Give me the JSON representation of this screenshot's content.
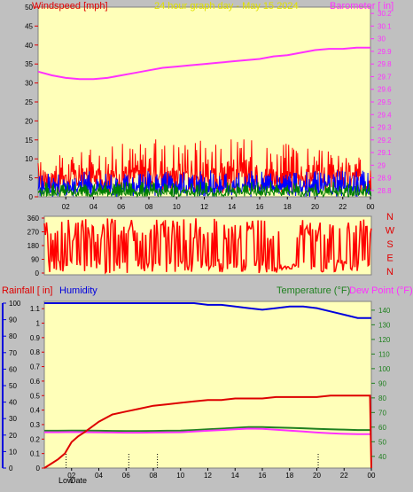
{
  "colors": {
    "background": "#c0c0c0",
    "plot": "#ffffb9",
    "wind": "#ff0000",
    "wind_avg": "#0000ff",
    "wind_low": "#007f00",
    "barometer": "#ff30ff",
    "direction": "#ff0000",
    "humidity": "#0000dd",
    "rain": "#dd0000",
    "temperature": "#208020",
    "dewpoint": "#ff30ff"
  },
  "chart_data": [
    {
      "type": "line",
      "title": "24 hour graph day - May 15 2024",
      "y_left_label": "Windspeed [mph]",
      "y_right_label": "Barometer [ in]",
      "x_ticks": [
        "02",
        "04",
        "06",
        "08",
        "10",
        "12",
        "14",
        "16",
        "18",
        "20",
        "22",
        "00"
      ],
      "ylim_left": [
        0,
        50
      ],
      "yticks_left": [
        "0",
        "5",
        "10",
        "15",
        "20",
        "25",
        "30",
        "35",
        "40",
        "45",
        "50"
      ],
      "ylim_right": [
        28.75,
        30.25
      ],
      "yticks_right": [
        "28.8",
        "28.9",
        "29",
        "29.1",
        "29.2",
        "29.3",
        "29.4",
        "29.5",
        "29.6",
        "29.7",
        "29.8",
        "29.9",
        "30",
        "30.1",
        "30.2"
      ],
      "barometer": {
        "x": [
          0,
          1,
          2,
          3,
          4,
          5,
          6,
          7,
          8,
          9,
          10,
          11,
          12,
          13,
          14,
          15,
          16,
          17,
          18,
          19,
          20,
          21,
          22,
          23,
          24
        ],
        "values": [
          29.74,
          29.71,
          29.69,
          29.68,
          29.68,
          29.69,
          29.71,
          29.73,
          29.75,
          29.77,
          29.78,
          29.79,
          29.8,
          29.81,
          29.82,
          29.83,
          29.84,
          29.86,
          29.87,
          29.89,
          29.91,
          29.92,
          29.92,
          29.93,
          29.93
        ]
      },
      "wind_bands": [
        {
          "series": "gust",
          "range": [
            0,
            18
          ]
        },
        {
          "series": "average",
          "range": [
            0,
            8
          ]
        },
        {
          "series": "low",
          "range": [
            0,
            4
          ]
        }
      ]
    },
    {
      "type": "line",
      "title": "",
      "y_left_ticks": [
        "0",
        "90",
        "180",
        "270",
        "360"
      ],
      "ylim_left": [
        0,
        360
      ],
      "y_right_ticks": [
        "N",
        "W",
        "S",
        "E",
        "N"
      ],
      "series": [
        {
          "name": "Wind Direction",
          "range": [
            0,
            360
          ]
        }
      ]
    },
    {
      "type": "line",
      "title": "",
      "y_left_label_rain": "Rainfall [ in]",
      "y_left_label_humidity": "Humidity",
      "y_right_label_temperature": "Temperature (°F)",
      "y_right_label_dewpoint": "Dew Point (°F)",
      "humidity_ticks": [
        "0",
        "10",
        "20",
        "30",
        "40",
        "50",
        "60",
        "70",
        "80",
        "90",
        "100"
      ],
      "ylim_humidity": [
        0,
        100
      ],
      "rain_ticks": [
        "0",
        "0.1",
        "0.2",
        "0.3",
        "0.4",
        "0.5",
        "0.6",
        "0.7",
        "0.8",
        "0.9",
        "1",
        "1.1"
      ],
      "ylim_rain": [
        0,
        1.15
      ],
      "temp_ticks": [
        "40",
        "50",
        "60",
        "70",
        "80",
        "90",
        "100",
        "110",
        "120",
        "130",
        "140"
      ],
      "ylim_temp": [
        32,
        146
      ],
      "x_ticks": [
        "02",
        "04",
        "06",
        "08",
        "10",
        "12",
        "14",
        "16",
        "18",
        "20",
        "22",
        "00"
      ],
      "bottom_labels": {
        "low": "Low",
        "date": "Date"
      },
      "humidity": {
        "x": [
          0,
          1,
          2,
          3,
          4,
          5,
          6,
          7,
          8,
          9,
          10,
          11,
          12,
          13,
          14,
          15,
          16,
          17,
          18,
          19,
          20,
          21,
          22,
          23,
          24
        ],
        "values": [
          100,
          100,
          100,
          100,
          100,
          100,
          100,
          100,
          100,
          100,
          100,
          100,
          99,
          99,
          98,
          97,
          96,
          97,
          98,
          98,
          97,
          95,
          93,
          91,
          91
        ]
      },
      "rain": {
        "x": [
          0,
          0.5,
          1,
          1.5,
          2,
          2.5,
          3,
          4,
          5,
          6,
          7,
          8,
          9,
          10,
          11,
          12,
          13,
          14,
          15,
          16,
          17,
          18,
          19,
          20,
          21,
          22,
          23,
          23.9,
          24
        ],
        "values": [
          0.0,
          0.03,
          0.06,
          0.1,
          0.18,
          0.22,
          0.25,
          0.32,
          0.37,
          0.39,
          0.41,
          0.43,
          0.44,
          0.45,
          0.46,
          0.47,
          0.47,
          0.48,
          0.48,
          0.48,
          0.49,
          0.49,
          0.49,
          0.49,
          0.5,
          0.5,
          0.5,
          0.5,
          0.0
        ]
      },
      "temperature": {
        "x": [
          0,
          1,
          2,
          3,
          4,
          5,
          6,
          7,
          8,
          9,
          10,
          11,
          12,
          13,
          14,
          15,
          16,
          17,
          18,
          19,
          20,
          21,
          22,
          23,
          24
        ],
        "values": [
          57.5,
          57.5,
          57.6,
          57.6,
          57.5,
          57.4,
          57.3,
          57.3,
          57.4,
          57.5,
          57.6,
          58,
          58.5,
          59,
          59.5,
          60,
          60,
          59.8,
          59.5,
          59.2,
          58.8,
          58.5,
          58.3,
          58,
          58
        ]
      },
      "dewpoint": {
        "x": [
          0,
          1,
          2,
          3,
          4,
          5,
          6,
          7,
          8,
          9,
          10,
          11,
          12,
          13,
          14,
          15,
          16,
          17,
          18,
          19,
          20,
          21,
          22,
          23,
          24
        ],
        "values": [
          56.5,
          56.5,
          56.6,
          56.5,
          56.4,
          56.3,
          56.2,
          56.2,
          56.3,
          56.4,
          56.5,
          57,
          57.5,
          58,
          58.5,
          59,
          58.8,
          58.2,
          57.6,
          57,
          56.3,
          55.8,
          55.4,
          55.2,
          55.2
        ]
      }
    }
  ]
}
